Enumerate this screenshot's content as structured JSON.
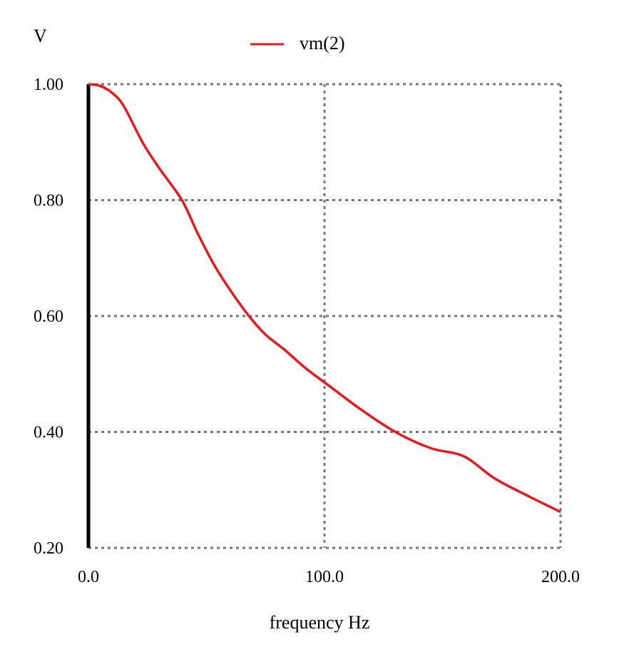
{
  "chart_data": {
    "type": "line",
    "title": "",
    "xlabel": "frequency Hz",
    "ylabel": "V",
    "xlim": [
      0,
      200
    ],
    "ylim": [
      0.2,
      1.0
    ],
    "x_ticks": [
      "0.0",
      "100.0",
      "200.0"
    ],
    "x_tick_values": [
      0,
      100,
      200
    ],
    "y_ticks": [
      "0.20",
      "0.40",
      "0.60",
      "0.80",
      "1.00"
    ],
    "y_tick_values": [
      0.2,
      0.4,
      0.6,
      0.8,
      1.0
    ],
    "grid": true,
    "legend_position": "top-center",
    "series": [
      {
        "name": "vm(2)",
        "color": "#e8191c",
        "x": [
          0,
          5,
          10,
          15,
          23,
          30,
          39.6,
          46,
          53,
          60,
          68,
          75,
          83,
          92,
          101.5,
          115,
          130,
          145,
          159,
          172,
          186,
          200
        ],
        "y": [
          1.0,
          0.997,
          0.985,
          0.962,
          0.899,
          0.855,
          0.8,
          0.745,
          0.69,
          0.645,
          0.6,
          0.568,
          0.542,
          0.51,
          0.481,
          0.44,
          0.4,
          0.372,
          0.358,
          0.32,
          0.29,
          0.262
        ]
      }
    ]
  }
}
